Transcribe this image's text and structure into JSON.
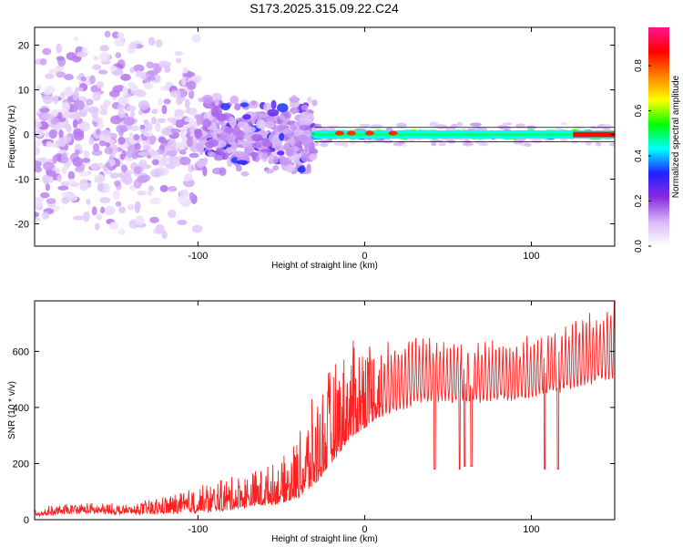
{
  "title": "S173.2025.315.09.22.C24",
  "chart_data": [
    {
      "type": "heatmap",
      "name": "spectrogram",
      "xlabel": "Height of straight line (km)",
      "ylabel": "Frequency (Hz)",
      "xlim": [
        -198,
        150
      ],
      "ylim": [
        -25,
        24
      ],
      "xticks": [
        -100,
        0,
        100
      ],
      "yticks": [
        -20,
        -10,
        0,
        10,
        20
      ],
      "colorbar": {
        "label": "Normalized spectral amplitude",
        "range": [
          0,
          0.97
        ],
        "ticks": [
          "0.0",
          "0.2",
          "0.4",
          "0.6",
          "0.8"
        ],
        "tick_values": [
          0,
          0.2,
          0.4,
          0.6,
          0.8
        ],
        "colormap": [
          "#ffffff",
          "#d8b8f8",
          "#8a2be2",
          "#2020ff",
          "#00ffff",
          "#00ff00",
          "#ffff00",
          "#ff8000",
          "#ff0000",
          "#ff1493"
        ]
      },
      "description_regions": [
        {
          "x_range": [
            -198,
            -100
          ],
          "freq_spread": 24,
          "amplitude": 0.08
        },
        {
          "x_range": [
            -100,
            -30
          ],
          "freq_spread": 9,
          "amplitude": 0.15
        },
        {
          "x_range": [
            -30,
            150
          ],
          "freq_spread": 1.5,
          "amplitude": 0.45
        }
      ]
    },
    {
      "type": "line",
      "name": "snr",
      "xlabel": "Height of straight line (km)",
      "ylabel": "SNR (10 * v/v)",
      "xlim": [
        -198,
        150
      ],
      "ylim": [
        0,
        780
      ],
      "xticks": [
        -100,
        0,
        100
      ],
      "yticks": [
        0,
        200,
        400,
        600
      ],
      "color": "#ff2020",
      "envelope": {
        "x": [
          -198,
          -170,
          -140,
          -110,
          -90,
          -70,
          -50,
          -40,
          -30,
          -20,
          -10,
          0,
          10,
          20,
          30,
          40,
          50,
          60,
          70,
          80,
          90,
          100,
          110,
          120,
          130,
          140,
          150
        ],
        "baseline": [
          15,
          25,
          20,
          25,
          30,
          45,
          60,
          80,
          120,
          200,
          280,
          330,
          370,
          400,
          420,
          430,
          430,
          430,
          430,
          430,
          430,
          440,
          460,
          470,
          480,
          500,
          520
        ],
        "peak": [
          40,
          60,
          55,
          100,
          140,
          170,
          210,
          300,
          450,
          550,
          620,
          680,
          620,
          650,
          660,
          650,
          640,
          640,
          640,
          640,
          650,
          660,
          680,
          700,
          730,
          760,
          780
        ]
      },
      "dips": [
        {
          "x": 42,
          "value": 180
        },
        {
          "x": 57,
          "value": 180
        },
        {
          "x": 60,
          "value": 190
        },
        {
          "x": 64,
          "value": 190
        },
        {
          "x": 108,
          "value": 180
        },
        {
          "x": 116,
          "value": 180
        }
      ]
    }
  ]
}
